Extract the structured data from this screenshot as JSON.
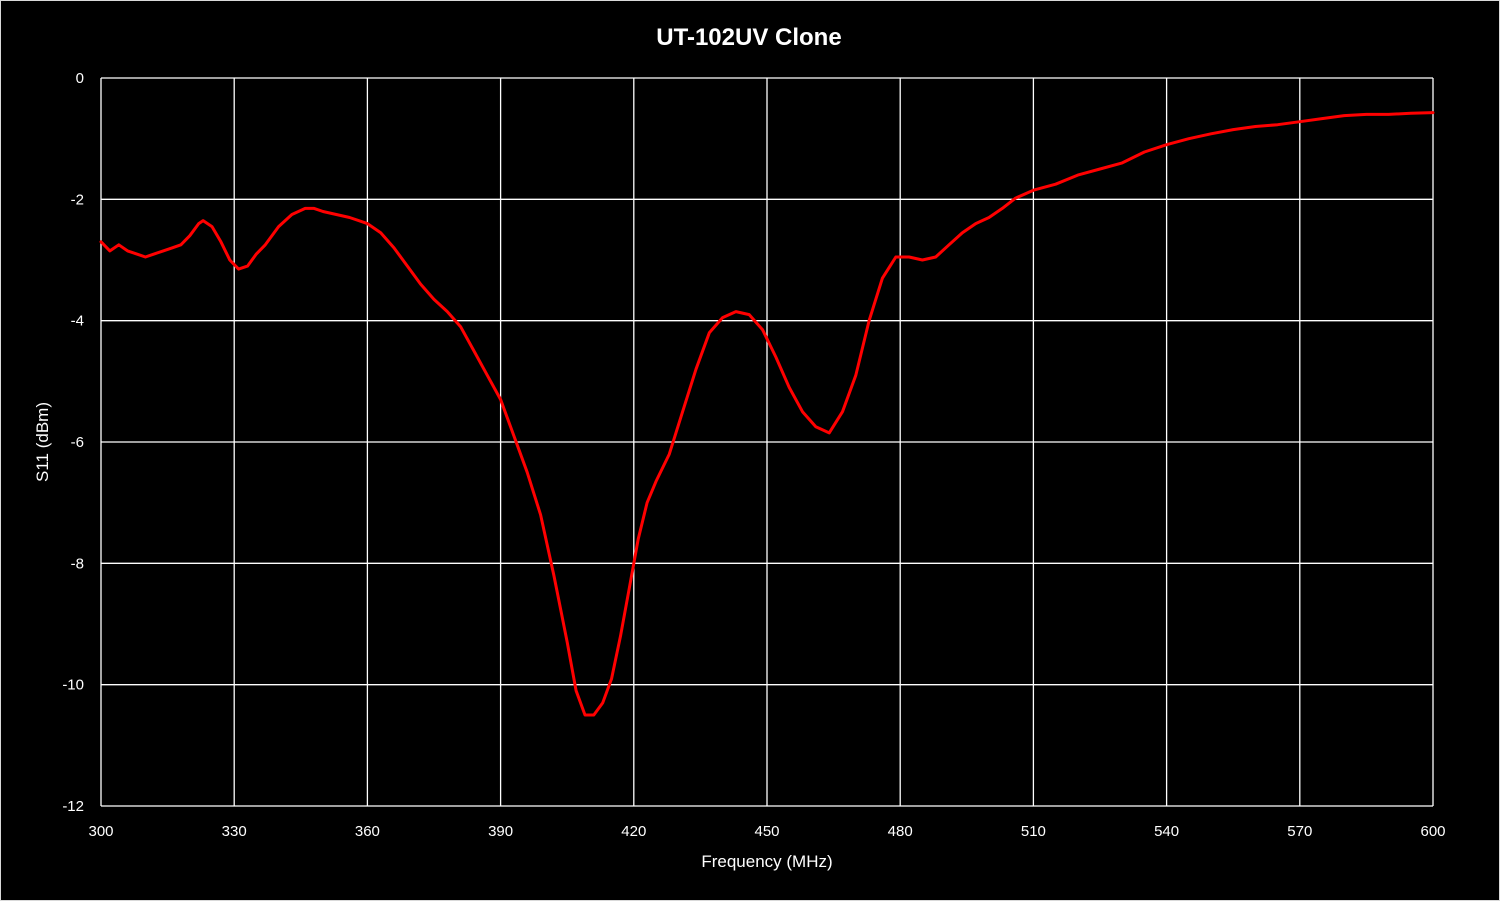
{
  "chart_data": {
    "type": "line",
    "title": "UT-102UV Clone",
    "xlabel": "Frequency (MHz)",
    "ylabel": "S11 (dBm)",
    "xlim": [
      300,
      600
    ],
    "ylim": [
      -12,
      0
    ],
    "x_ticks": [
      "300",
      "330",
      "360",
      "390",
      "420",
      "450",
      "480",
      "510",
      "540",
      "570",
      "600"
    ],
    "y_ticks": [
      "0",
      "-2",
      "-4",
      "-6",
      "-8",
      "-10",
      "-12"
    ],
    "grid": true,
    "legend": "none",
    "colors": {
      "background": "#000000",
      "grid": "#ffffff",
      "series": "#ff0000",
      "text": "#ffffff"
    },
    "series": [
      {
        "x": [
          300,
          302,
          304,
          306,
          308,
          310,
          312,
          314,
          316,
          318,
          320,
          322,
          323,
          325,
          327,
          329,
          331,
          333,
          335,
          337,
          340,
          343,
          346,
          348,
          350,
          353,
          356,
          360,
          363,
          366,
          369,
          372,
          375,
          378,
          381,
          384,
          387,
          390,
          393,
          396,
          399,
          402,
          405,
          407,
          409,
          411,
          413,
          415,
          417,
          419,
          421,
          423,
          425,
          428,
          431,
          434,
          437,
          440,
          443,
          446,
          449,
          452,
          455,
          458,
          461,
          464,
          467,
          470,
          473,
          476,
          479,
          482,
          485,
          488,
          491,
          494,
          497,
          500,
          503,
          506,
          510,
          515,
          520,
          525,
          530,
          535,
          540,
          545,
          550,
          555,
          560,
          565,
          570,
          575,
          580,
          585,
          590,
          595,
          600
        ],
        "values": [
          -2.7,
          -2.85,
          -2.75,
          -2.85,
          -2.9,
          -2.95,
          -2.9,
          -2.85,
          -2.8,
          -2.75,
          -2.6,
          -2.4,
          -2.35,
          -2.45,
          -2.7,
          -3.0,
          -3.15,
          -3.1,
          -2.9,
          -2.75,
          -2.45,
          -2.25,
          -2.15,
          -2.15,
          -2.2,
          -2.25,
          -2.3,
          -2.4,
          -2.55,
          -2.8,
          -3.1,
          -3.4,
          -3.65,
          -3.85,
          -4.1,
          -4.5,
          -4.9,
          -5.3,
          -5.9,
          -6.5,
          -7.2,
          -8.2,
          -9.3,
          -10.1,
          -10.5,
          -10.5,
          -10.3,
          -9.9,
          -9.2,
          -8.4,
          -7.6,
          -7.0,
          -6.65,
          -6.2,
          -5.5,
          -4.8,
          -4.2,
          -3.95,
          -3.85,
          -3.9,
          -4.15,
          -4.6,
          -5.1,
          -5.5,
          -5.75,
          -5.85,
          -5.5,
          -4.9,
          -4.0,
          -3.3,
          -2.95,
          -2.95,
          -3.0,
          -2.95,
          -2.75,
          -2.55,
          -2.4,
          -2.3,
          -2.15,
          -1.98,
          -1.85,
          -1.75,
          -1.6,
          -1.5,
          -1.4,
          -1.22,
          -1.1,
          -1.0,
          -0.92,
          -0.85,
          -0.8,
          -0.77,
          -0.72,
          -0.67,
          -0.62,
          -0.6,
          -0.6,
          -0.58,
          -0.57
        ]
      }
    ]
  }
}
